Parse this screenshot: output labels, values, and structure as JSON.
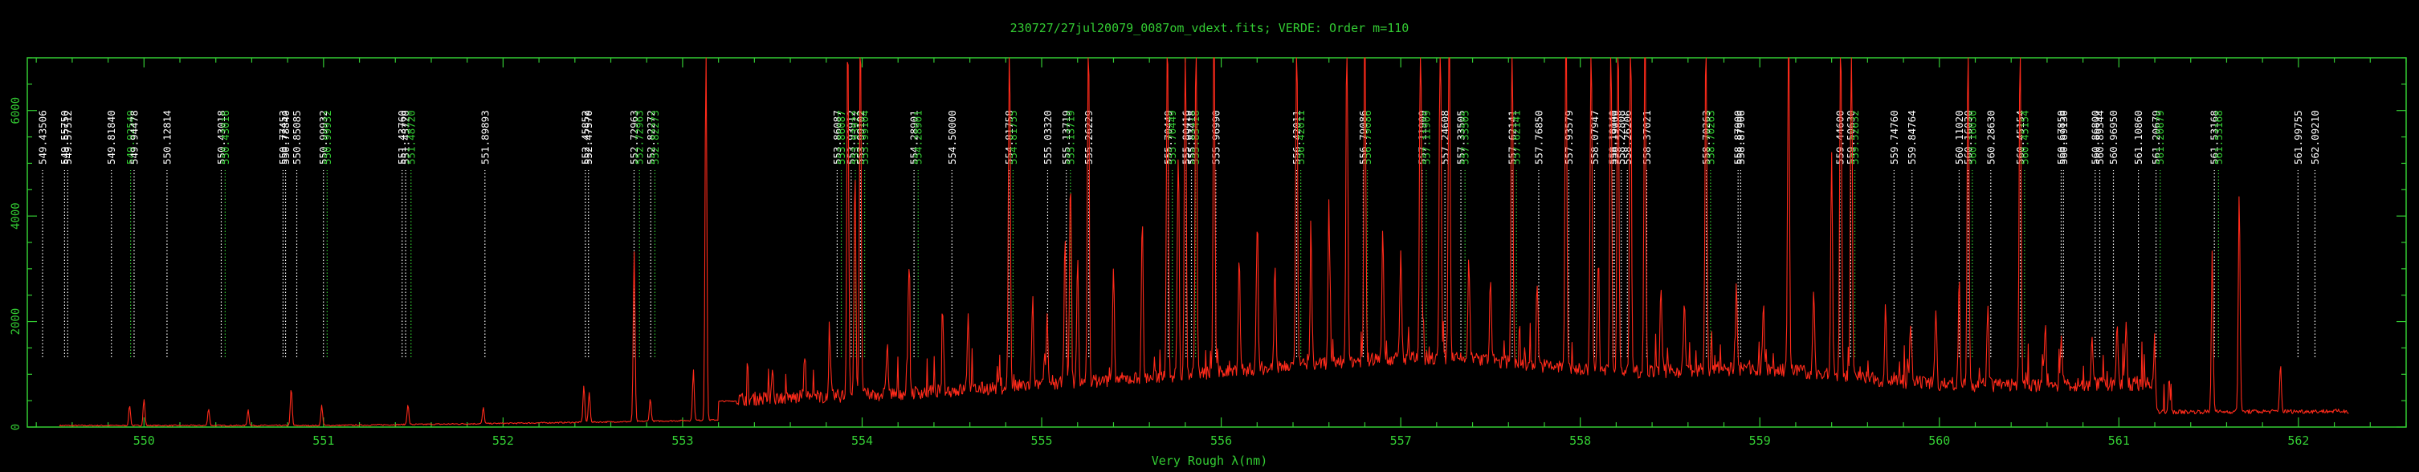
{
  "title": "230727/27jul20079_0087om_vdext.fits; VERDE: Order m=110",
  "chart_data": {
    "type": "line",
    "title": "230727/27jul20079_0087om_vdext.fits; VERDE: Order m=110",
    "xlabel": "Very Rough λ(nm)",
    "ylabel": "",
    "xlim": [
      549.35,
      562.6
    ],
    "ylim": [
      0,
      7000
    ],
    "x_ticks": [
      "550",
      "551",
      "552",
      "553",
      "554",
      "555",
      "556",
      "557",
      "558",
      "559",
      "560",
      "561",
      "562"
    ],
    "y_ticks": [
      "0",
      "2000",
      "4000",
      "6000"
    ],
    "colors": {
      "axes": "#33cc33",
      "spectrum": "#ff2a1a",
      "line_white": "#ffffff",
      "line_green": "#33cc33"
    },
    "emission_peaks": [
      {
        "x": 549.92,
        "y": 380
      },
      {
        "x": 550.0,
        "y": 500
      },
      {
        "x": 550.36,
        "y": 320
      },
      {
        "x": 550.58,
        "y": 300
      },
      {
        "x": 550.82,
        "y": 700
      },
      {
        "x": 550.99,
        "y": 380
      },
      {
        "x": 551.47,
        "y": 380
      },
      {
        "x": 551.89,
        "y": 300
      },
      {
        "x": 552.45,
        "y": 700
      },
      {
        "x": 552.48,
        "y": 560
      },
      {
        "x": 552.73,
        "y": 3250
      },
      {
        "x": 552.82,
        "y": 420
      },
      {
        "x": 553.06,
        "y": 950
      },
      {
        "x": 553.13,
        "y": 7000
      },
      {
        "x": 553.5,
        "y": 600
      },
      {
        "x": 553.68,
        "y": 800
      },
      {
        "x": 553.82,
        "y": 900
      },
      {
        "x": 553.92,
        "y": 7000
      },
      {
        "x": 553.96,
        "y": 4200
      },
      {
        "x": 553.99,
        "y": 7000
      },
      {
        "x": 554.14,
        "y": 1000
      },
      {
        "x": 554.26,
        "y": 2400
      },
      {
        "x": 554.45,
        "y": 1200
      },
      {
        "x": 554.59,
        "y": 1400
      },
      {
        "x": 554.82,
        "y": 7000
      },
      {
        "x": 554.95,
        "y": 1600
      },
      {
        "x": 555.03,
        "y": 1300
      },
      {
        "x": 555.13,
        "y": 2900
      },
      {
        "x": 555.16,
        "y": 3800
      },
      {
        "x": 555.2,
        "y": 2300
      },
      {
        "x": 555.26,
        "y": 7000
      },
      {
        "x": 555.4,
        "y": 2000
      },
      {
        "x": 555.56,
        "y": 3000
      },
      {
        "x": 555.7,
        "y": 7000
      },
      {
        "x": 555.76,
        "y": 4100
      },
      {
        "x": 555.8,
        "y": 7000
      },
      {
        "x": 555.86,
        "y": 7000
      },
      {
        "x": 555.96,
        "y": 7000
      },
      {
        "x": 556.1,
        "y": 2200
      },
      {
        "x": 556.2,
        "y": 2600
      },
      {
        "x": 556.3,
        "y": 2000
      },
      {
        "x": 556.42,
        "y": 7000
      },
      {
        "x": 556.5,
        "y": 2300
      },
      {
        "x": 556.6,
        "y": 3000
      },
      {
        "x": 556.7,
        "y": 7000
      },
      {
        "x": 556.8,
        "y": 7000
      },
      {
        "x": 556.9,
        "y": 2500
      },
      {
        "x": 557.0,
        "y": 2000
      },
      {
        "x": 557.11,
        "y": 7000
      },
      {
        "x": 557.22,
        "y": 7000
      },
      {
        "x": 557.27,
        "y": 7000
      },
      {
        "x": 557.38,
        "y": 1800
      },
      {
        "x": 557.5,
        "y": 1600
      },
      {
        "x": 557.62,
        "y": 7000
      },
      {
        "x": 557.76,
        "y": 1600
      },
      {
        "x": 557.92,
        "y": 7000
      },
      {
        "x": 558.06,
        "y": 7000
      },
      {
        "x": 558.1,
        "y": 2000
      },
      {
        "x": 558.17,
        "y": 7000
      },
      {
        "x": 558.21,
        "y": 7000
      },
      {
        "x": 558.28,
        "y": 7000
      },
      {
        "x": 558.36,
        "y": 7000
      },
      {
        "x": 558.45,
        "y": 1600
      },
      {
        "x": 558.58,
        "y": 1300
      },
      {
        "x": 558.7,
        "y": 7000
      },
      {
        "x": 558.87,
        "y": 1400
      },
      {
        "x": 559.02,
        "y": 1200
      },
      {
        "x": 559.16,
        "y": 7000
      },
      {
        "x": 559.3,
        "y": 1500
      },
      {
        "x": 559.4,
        "y": 4100
      },
      {
        "x": 559.45,
        "y": 7000
      },
      {
        "x": 559.51,
        "y": 7000
      },
      {
        "x": 559.7,
        "y": 1400
      },
      {
        "x": 559.84,
        "y": 1100
      },
      {
        "x": 559.98,
        "y": 1500
      },
      {
        "x": 560.11,
        "y": 1800
      },
      {
        "x": 560.16,
        "y": 7000
      },
      {
        "x": 560.27,
        "y": 1600
      },
      {
        "x": 560.45,
        "y": 7000
      },
      {
        "x": 560.59,
        "y": 1100
      },
      {
        "x": 560.68,
        "y": 900
      },
      {
        "x": 560.85,
        "y": 1000
      },
      {
        "x": 560.99,
        "y": 1200
      },
      {
        "x": 561.04,
        "y": 1300
      },
      {
        "x": 561.2,
        "y": 1000
      },
      {
        "x": 561.28,
        "y": 600
      },
      {
        "x": 561.52,
        "y": 3100
      },
      {
        "x": 561.67,
        "y": 4200
      },
      {
        "x": 561.9,
        "y": 900
      }
    ],
    "reference_lines": [
      {
        "label": "549.43506",
        "x": 549.435,
        "color": "white"
      },
      {
        "label": "549.55750",
        "x": 549.5575,
        "color": "white"
      },
      {
        "label": "549.57512",
        "x": 549.5751,
        "color": "white"
      },
      {
        "label": "549.81840",
        "x": 549.8184,
        "color": "white"
      },
      {
        "label": "549.92549",
        "x": 549.9255,
        "color": "green"
      },
      {
        "label": "549.94478",
        "x": 549.9448,
        "color": "white"
      },
      {
        "label": "550.12814",
        "x": 550.1281,
        "color": "white"
      },
      {
        "label": "550.43018",
        "x": 550.4302,
        "color": "white"
      },
      {
        "label": "550.43016",
        "x": 550.452,
        "color": "green"
      },
      {
        "label": "550.77453",
        "x": 550.7745,
        "color": "white"
      },
      {
        "label": "550.78840",
        "x": 550.7884,
        "color": "white"
      },
      {
        "label": "550.85085",
        "x": 550.8509,
        "color": "white"
      },
      {
        "label": "550.99932",
        "x": 550.9993,
        "color": "white"
      },
      {
        "label": "550.99932",
        "x": 551.02,
        "color": "green"
      },
      {
        "label": "551.43760",
        "x": 551.4376,
        "color": "white"
      },
      {
        "label": "551.45720",
        "x": 551.4572,
        "color": "white"
      },
      {
        "label": "551.48720",
        "x": 551.4872,
        "color": "green"
      },
      {
        "label": "551.89893",
        "x": 551.8989,
        "color": "white"
      },
      {
        "label": "552.45852",
        "x": 552.4585,
        "color": "white"
      },
      {
        "label": "552.47570",
        "x": 552.4757,
        "color": "white"
      },
      {
        "label": "552.72963",
        "x": 552.7296,
        "color": "white"
      },
      {
        "label": "552.72963",
        "x": 552.7596,
        "color": "green"
      },
      {
        "label": "552.82272",
        "x": 552.8227,
        "color": "white"
      },
      {
        "label": "552.82273",
        "x": 552.8457,
        "color": "green"
      },
      {
        "label": "553.86087",
        "x": 553.8609,
        "color": "white"
      },
      {
        "label": "553.86087",
        "x": 553.8839,
        "color": "green"
      },
      {
        "label": "553.93912",
        "x": 553.9391,
        "color": "white"
      },
      {
        "label": "553.93922",
        "x": 553.9622,
        "color": "green"
      },
      {
        "label": "553.99102",
        "x": 553.991,
        "color": "white"
      },
      {
        "label": "553.99104",
        "x": 554.014,
        "color": "green"
      },
      {
        "label": "554.28901",
        "x": 554.289,
        "color": "white"
      },
      {
        "label": "554.28901",
        "x": 554.312,
        "color": "green"
      },
      {
        "label": "554.50000",
        "x": 554.5,
        "color": "white"
      },
      {
        "label": "554.81758",
        "x": 554.8176,
        "color": "white"
      },
      {
        "label": "554.81755",
        "x": 554.8406,
        "color": "green"
      },
      {
        "label": "555.03320",
        "x": 555.0332,
        "color": "white"
      },
      {
        "label": "555.13719",
        "x": 555.1372,
        "color": "white"
      },
      {
        "label": "555.13719",
        "x": 555.1602,
        "color": "green"
      },
      {
        "label": "555.26229",
        "x": 555.2623,
        "color": "white"
      },
      {
        "label": "555.70449",
        "x": 555.7045,
        "color": "white"
      },
      {
        "label": "555.70449",
        "x": 555.7275,
        "color": "green"
      },
      {
        "label": "555.80416",
        "x": 555.8042,
        "color": "white"
      },
      {
        "label": "555.83418",
        "x": 555.8342,
        "color": "white"
      },
      {
        "label": "555.83418",
        "x": 555.8572,
        "color": "green"
      },
      {
        "label": "555.96990",
        "x": 555.9699,
        "color": "white"
      },
      {
        "label": "556.42011",
        "x": 556.4201,
        "color": "white"
      },
      {
        "label": "556.42011",
        "x": 556.4431,
        "color": "green"
      },
      {
        "label": "556.79086",
        "x": 556.7909,
        "color": "white"
      },
      {
        "label": "556.79086",
        "x": 556.8139,
        "color": "green"
      },
      {
        "label": "557.11909",
        "x": 557.1191,
        "color": "white"
      },
      {
        "label": "557.11909",
        "x": 557.1421,
        "color": "green"
      },
      {
        "label": "557.24608",
        "x": 557.2461,
        "color": "white"
      },
      {
        "label": "557.33505",
        "x": 557.335,
        "color": "white"
      },
      {
        "label": "557.33505",
        "x": 557.358,
        "color": "green"
      },
      {
        "label": "557.62141",
        "x": 557.6214,
        "color": "white"
      },
      {
        "label": "557.62141",
        "x": 557.6444,
        "color": "green"
      },
      {
        "label": "557.76850",
        "x": 557.7685,
        "color": "white"
      },
      {
        "label": "557.93579",
        "x": 557.9358,
        "color": "white"
      },
      {
        "label": "558.07947",
        "x": 558.0795,
        "color": "white"
      },
      {
        "label": "558.18140",
        "x": 558.1814,
        "color": "white"
      },
      {
        "label": "558.19000",
        "x": 558.19,
        "color": "white"
      },
      {
        "label": "558.22808",
        "x": 558.2281,
        "color": "white"
      },
      {
        "label": "558.26206",
        "x": 558.2621,
        "color": "white"
      },
      {
        "label": "558.37021",
        "x": 558.3702,
        "color": "white"
      },
      {
        "label": "558.70263",
        "x": 558.7026,
        "color": "white"
      },
      {
        "label": "558.70263",
        "x": 558.7256,
        "color": "green"
      },
      {
        "label": "558.87900",
        "x": 558.879,
        "color": "white"
      },
      {
        "label": "558.87906",
        "x": 558.8935,
        "color": "white"
      },
      {
        "label": "559.44600",
        "x": 559.446,
        "color": "white"
      },
      {
        "label": "559.50630",
        "x": 559.5063,
        "color": "white"
      },
      {
        "label": "559.52632",
        "x": 559.5293,
        "color": "green"
      },
      {
        "label": "559.74760",
        "x": 559.7476,
        "color": "white"
      },
      {
        "label": "559.84764",
        "x": 559.8476,
        "color": "white"
      },
      {
        "label": "560.11020",
        "x": 560.1102,
        "color": "white"
      },
      {
        "label": "560.16030",
        "x": 560.1603,
        "color": "white"
      },
      {
        "label": "560.16030",
        "x": 560.1833,
        "color": "green"
      },
      {
        "label": "560.28630",
        "x": 560.2863,
        "color": "white"
      },
      {
        "label": "560.45154",
        "x": 560.4515,
        "color": "white"
      },
      {
        "label": "560.45154",
        "x": 560.4745,
        "color": "green"
      },
      {
        "label": "560.67850",
        "x": 560.6785,
        "color": "white"
      },
      {
        "label": "560.69130",
        "x": 560.6913,
        "color": "white"
      },
      {
        "label": "560.86800",
        "x": 560.868,
        "color": "white"
      },
      {
        "label": "560.89344",
        "x": 560.8934,
        "color": "white"
      },
      {
        "label": "560.96950",
        "x": 560.9695,
        "color": "white"
      },
      {
        "label": "561.10860",
        "x": 561.1086,
        "color": "white"
      },
      {
        "label": "561.20679",
        "x": 561.2068,
        "color": "white"
      },
      {
        "label": "561.20679",
        "x": 561.2298,
        "color": "green"
      },
      {
        "label": "561.53168",
        "x": 561.5317,
        "color": "white"
      },
      {
        "label": "561.53168",
        "x": 561.5547,
        "color": "green"
      },
      {
        "label": "561.99755",
        "x": 561.9976,
        "color": "white"
      },
      {
        "label": "562.09210",
        "x": 562.0921,
        "color": "white"
      }
    ]
  }
}
